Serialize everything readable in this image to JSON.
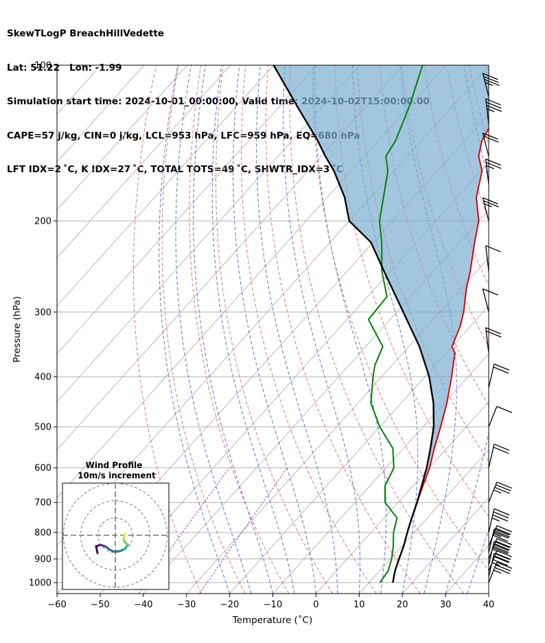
{
  "header": {
    "line1": "SkewTLogP BreachHillVedette",
    "line2": "Lat: 51.22   Lon: -1.99",
    "line3": "Simulation start time: 2024-10-01_00:00:00, Valid time: 2024-10-02T15:00:00.00",
    "line4": "CAPE=57 j/kg, CIN=0 j/kg, LCL=953 hPa, LFC=959 hPa, EQ=680 hPa",
    "line5": "LFT IDX=2 ˚C, K IDX=27 ˚C, TOTAL TOTS=49 ˚C, SHWTR_IDX=3 ˚C"
  },
  "chart_data": {
    "type": "line",
    "title": "SkewTLogP BreachHillVedette",
    "xlabel": "Temperature (˚C)",
    "ylabel": "Pressure (hPa)",
    "xlim": [
      -60,
      40
    ],
    "ylim": [
      1050,
      100
    ],
    "y_scale": "log",
    "x_ticks": [
      -60,
      -50,
      -40,
      -30,
      -20,
      -10,
      0,
      10,
      20,
      30,
      40
    ],
    "y_ticks": [
      1000,
      900,
      800,
      700,
      600,
      500,
      400,
      300,
      200,
      100
    ],
    "grid": true,
    "series": [
      {
        "name": "",
        "color": "#e00000",
        "points": [
          [
            15.5,
            1000
          ],
          [
            13.6,
            950
          ],
          [
            12.0,
            900
          ],
          [
            10.4,
            850
          ],
          [
            8.4,
            800
          ],
          [
            6.4,
            750
          ],
          [
            4.4,
            700
          ],
          [
            2.3,
            650
          ],
          [
            0.1,
            600
          ],
          [
            -2.9,
            550
          ],
          [
            -5.9,
            500
          ],
          [
            -9.4,
            450
          ],
          [
            -13.8,
            400
          ],
          [
            -18.0,
            360
          ],
          [
            -20.0,
            350
          ],
          [
            -22.3,
            320
          ],
          [
            -24.5,
            300
          ],
          [
            -28.8,
            270
          ],
          [
            -31.5,
            250
          ],
          [
            -36.5,
            220
          ],
          [
            -40.0,
            200
          ],
          [
            -45.5,
            180
          ],
          [
            -49.7,
            160
          ],
          [
            -53.5,
            150
          ],
          [
            -56.0,
            140
          ],
          [
            -58.8,
            120
          ],
          [
            -58.4,
            100
          ]
        ]
      },
      {
        "name": "",
        "color": "#008000",
        "points": [
          [
            12.5,
            1000
          ],
          [
            12.0,
            950
          ],
          [
            10.3,
            900
          ],
          [
            8.0,
            850
          ],
          [
            5.2,
            800
          ],
          [
            3.0,
            750
          ],
          [
            -3.0,
            700
          ],
          [
            -6.5,
            650
          ],
          [
            -8.2,
            600
          ],
          [
            -12.5,
            550
          ],
          [
            -20.0,
            500
          ],
          [
            -27.0,
            450
          ],
          [
            -32.0,
            400
          ],
          [
            -34.0,
            380
          ],
          [
            -36.0,
            350
          ],
          [
            -45.0,
            310
          ],
          [
            -45.5,
            280
          ],
          [
            -52.0,
            250
          ],
          [
            -58.0,
            220
          ],
          [
            -63.0,
            200
          ],
          [
            -67.0,
            180
          ],
          [
            -71.5,
            160
          ],
          [
            -75.0,
            150
          ],
          [
            -76.0,
            140
          ],
          [
            -80.0,
            120
          ],
          [
            -85.5,
            100
          ]
        ]
      },
      {
        "name": "",
        "color": "#000000",
        "points": [
          [
            15.5,
            1000
          ],
          [
            13.6,
            950
          ],
          [
            12.0,
            900
          ],
          [
            10.4,
            850
          ],
          [
            8.4,
            800
          ],
          [
            6.4,
            750
          ],
          [
            4.4,
            700
          ],
          [
            2.0,
            650
          ],
          [
            -0.6,
            600
          ],
          [
            -3.8,
            550
          ],
          [
            -7.5,
            500
          ],
          [
            -12.5,
            450
          ],
          [
            -19.0,
            400
          ],
          [
            -27.5,
            350
          ],
          [
            -38.5,
            300
          ],
          [
            -51.5,
            250
          ],
          [
            -60.5,
            220
          ],
          [
            -70.0,
            200
          ],
          [
            -76.0,
            180
          ],
          [
            -84.0,
            160
          ],
          [
            -89.0,
            150
          ],
          [
            -94.0,
            140
          ],
          [
            -106.0,
            120
          ],
          [
            -120.0,
            100
          ]
        ]
      }
    ],
    "shaded_region": {
      "label": "CAPE",
      "color": "#7aaed0",
      "from_hPa": 959,
      "to_hPa": 100
    },
    "wind_barbs": [
      {
        "p": 1000,
        "kt": 25
      },
      {
        "p": 975,
        "kt": 25
      },
      {
        "p": 950,
        "kt": 30
      },
      {
        "p": 925,
        "kt": 30
      },
      {
        "p": 900,
        "kt": 35
      },
      {
        "p": 875,
        "kt": 30
      },
      {
        "p": 850,
        "kt": 25
      },
      {
        "p": 800,
        "kt": 25
      },
      {
        "p": 700,
        "kt": 25
      },
      {
        "p": 600,
        "kt": 20
      },
      {
        "p": 500,
        "kt": 10
      },
      {
        "p": 420,
        "kt": 20
      },
      {
        "p": 360,
        "kt": 20
      },
      {
        "p": 300,
        "kt": 10
      },
      {
        "p": 250,
        "kt": 10
      },
      {
        "p": 200,
        "kt": 15
      },
      {
        "p": 170,
        "kt": 15
      },
      {
        "p": 150,
        "kt": 20
      },
      {
        "p": 130,
        "kt": 25
      },
      {
        "p": 115,
        "kt": 25
      }
    ],
    "inset": {
      "title": "Wind Profile",
      "subtitle": "10m/s increment",
      "rings": [
        10,
        20,
        30
      ]
    }
  }
}
